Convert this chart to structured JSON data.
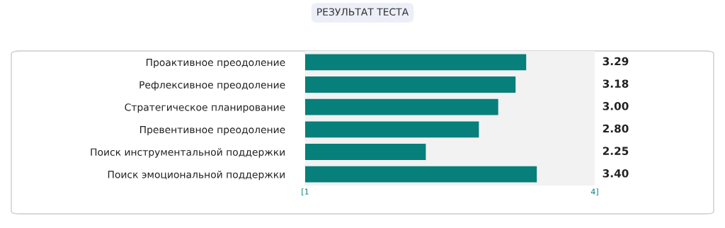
{
  "chart_data": {
    "type": "bar",
    "orientation": "horizontal",
    "title": "РЕЗУЛЬТАТ ТЕСТА",
    "categories": [
      "Проактивное преодоление",
      "Рефлексивное преодоление",
      "Стратегическое планирование",
      "Превентивное преодоление",
      "Поиск инструментальной поддержки",
      "Поиск эмоциональной поддержки"
    ],
    "values": [
      3.29,
      3.18,
      3.0,
      2.8,
      2.25,
      3.4
    ],
    "value_labels": [
      "3.29",
      "3.18",
      "3.00",
      "2.80",
      "2.25",
      "3.40"
    ],
    "color": "#077f7a",
    "xlim": [
      1,
      4
    ],
    "xticks": [
      {
        "value": 1,
        "label": "[1"
      },
      {
        "value": 4,
        "label": "4]"
      }
    ],
    "grid": false
  }
}
